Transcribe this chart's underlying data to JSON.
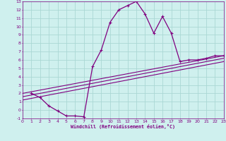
{
  "xlabel": "Windchill (Refroidissement éolien,°C)",
  "xlim": [
    0,
    23
  ],
  "ylim": [
    -1,
    13
  ],
  "xticks": [
    0,
    1,
    2,
    3,
    4,
    5,
    6,
    7,
    8,
    9,
    10,
    11,
    12,
    13,
    14,
    15,
    16,
    17,
    18,
    19,
    20,
    21,
    22,
    23
  ],
  "yticks": [
    -1,
    0,
    1,
    2,
    3,
    4,
    5,
    6,
    7,
    8,
    9,
    10,
    11,
    12,
    13
  ],
  "background_color": "#cff0ee",
  "grid_color": "#aad8d4",
  "line_color": "#800080",
  "line1_x": [
    1,
    2,
    3,
    4,
    5,
    6,
    7,
    8,
    9,
    10,
    11,
    12,
    13,
    14,
    15,
    16,
    17,
    18,
    19,
    20,
    21,
    22,
    23
  ],
  "line1_y": [
    2.0,
    1.5,
    0.5,
    -0.1,
    -0.7,
    -0.7,
    -0.8,
    5.2,
    7.2,
    10.5,
    12.0,
    12.5,
    13.0,
    11.5,
    9.2,
    11.2,
    9.2,
    5.8,
    6.0,
    6.0,
    6.2,
    6.5,
    6.5
  ],
  "line2_x": [
    0,
    23
  ],
  "line2_y": [
    2.0,
    6.5
  ],
  "line3_x": [
    0,
    23
  ],
  "line3_y": [
    1.6,
    6.2
  ],
  "line4_x": [
    0,
    23
  ],
  "line4_y": [
    1.2,
    5.8
  ],
  "marker": "+"
}
